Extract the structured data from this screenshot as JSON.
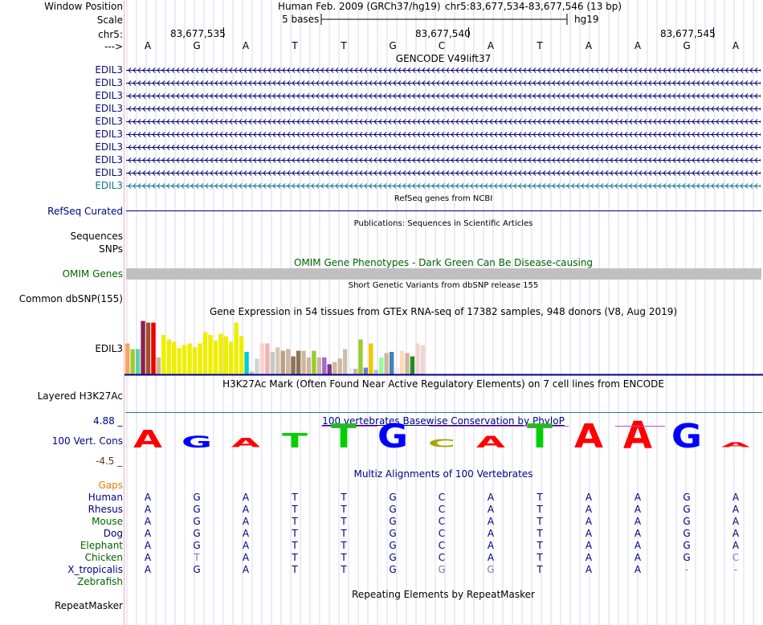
{
  "header": {
    "window_position_label": "Window Position",
    "scale_label": "Scale",
    "chr_label": "chr5:",
    "strand_label": "--->",
    "assembly": "Human Feb. 2009 (GRCh37/hg19)",
    "position": "chr5:83,677,534-83,677,546 (13 bp)",
    "scale_text": "5 bases",
    "scale_db": "hg19",
    "ruler_ticks": [
      "83,677,535",
      "83,677,540",
      "83,677,545"
    ],
    "bases": [
      "A",
      "G",
      "A",
      "T",
      "T",
      "G",
      "C",
      "A",
      "T",
      "A",
      "A",
      "G",
      "A"
    ]
  },
  "gencode": {
    "title": "GENCODE V49lift37",
    "genes": [
      "EDIL3",
      "EDIL3",
      "EDIL3",
      "EDIL3",
      "EDIL3",
      "EDIL3",
      "EDIL3",
      "EDIL3",
      "EDIL3",
      "EDIL3"
    ]
  },
  "refseq": {
    "title": "RefSeq genes from NCBI",
    "label": "RefSeq Curated"
  },
  "publications": {
    "title": "Publications: Sequences in Scientific Articles",
    "label": "Sequences"
  },
  "snps": {
    "label": "SNPs"
  },
  "omim": {
    "title": "OMIM Gene Phenotypes - Dark Green Can Be Disease-causing",
    "label": "OMIM Genes"
  },
  "dbsnp": {
    "title": "Short Genetic Variants from dbSNP release 155",
    "label": "Common dbSNP(155)"
  },
  "gtex": {
    "title": "Gene Expression in 54 tissues from GTEx RNA-seq of 17382 samples, 948 donors (V8, Aug 2019)",
    "label": "EDIL3"
  },
  "h3k27ac": {
    "title": "H3K27Ac Mark (Often Found Near Active Regulatory Elements) on 7 cell lines from ENCODE",
    "label": "Layered H3K27Ac"
  },
  "phylop": {
    "title": "100 vertebrates Basewise Conservation by PhyloP",
    "label": "100 Vert. Cons",
    "ymax": "4.88 _",
    "ymin": "-4.5 _"
  },
  "multiz": {
    "title": "Multiz Alignments of 100 Vertebrates",
    "gaps_label": "Gaps",
    "species": [
      {
        "name": "Human",
        "seq": [
          "A",
          "G",
          "A",
          "T",
          "T",
          "G",
          "C",
          "A",
          "T",
          "A",
          "A",
          "G",
          "A"
        ]
      },
      {
        "name": "Rhesus",
        "seq": [
          "A",
          "G",
          "A",
          "T",
          "T",
          "G",
          "C",
          "A",
          "T",
          "A",
          "A",
          "G",
          "A"
        ]
      },
      {
        "name": "Mouse",
        "seq": [
          "A",
          "G",
          "A",
          "T",
          "T",
          "G",
          "C",
          "A",
          "T",
          "A",
          "A",
          "G",
          "A"
        ]
      },
      {
        "name": "Dog",
        "seq": [
          "A",
          "G",
          "A",
          "T",
          "T",
          "G",
          "C",
          "A",
          "T",
          "A",
          "A",
          "G",
          "A"
        ]
      },
      {
        "name": "Elephant",
        "seq": [
          "A",
          "G",
          "A",
          "T",
          "T",
          "G",
          "C",
          "A",
          "T",
          "A",
          "A",
          "G",
          "A"
        ]
      },
      {
        "name": "Chicken",
        "seq": [
          "A",
          "T",
          "A",
          "T",
          "T",
          "G",
          "C",
          "A",
          "T",
          "A",
          "A",
          "G",
          "C"
        ]
      },
      {
        "name": "X_tropicalis",
        "seq": [
          "A",
          "G",
          "A",
          "T",
          "T",
          "G",
          "G",
          "G",
          "T",
          "A",
          "A",
          "-",
          "-"
        ]
      },
      {
        "name": "Zebrafish",
        "seq": []
      }
    ]
  },
  "repeatmasker": {
    "title": "Repeating Elements by RepeatMasker",
    "label": "RepeatMasker"
  },
  "colors": {
    "navy": "#000080",
    "gene_blue": "#0c0c78",
    "gene_light": "#0c7890",
    "omim_green": "#006400",
    "gray_bar": "#c0c0c0",
    "teal_line": "#2a7a7a",
    "a_red": "#ff0000",
    "c_yellow": "#a8a800",
    "g_blue": "#0000ff",
    "t_green": "#00d000"
  }
}
